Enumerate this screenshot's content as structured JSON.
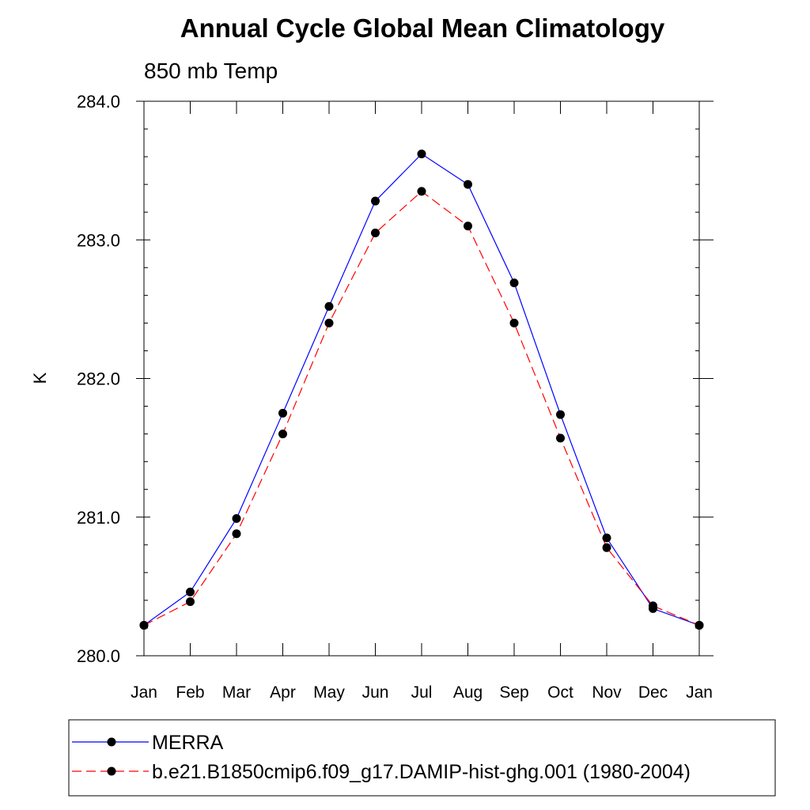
{
  "chart_data": {
    "type": "line",
    "title": "Annual Cycle Global Mean Climatology",
    "subtitle": "850 mb Temp",
    "xlabel": "",
    "ylabel": "K",
    "categories": [
      "Jan",
      "Feb",
      "Mar",
      "Apr",
      "May",
      "Jun",
      "Jul",
      "Aug",
      "Sep",
      "Oct",
      "Nov",
      "Dec",
      "Jan"
    ],
    "ylim": [
      280.0,
      284.0
    ],
    "yticks": [
      "280.0",
      "281.0",
      "282.0",
      "283.0",
      "284.0"
    ],
    "grid": false,
    "legend_position": "bottom",
    "series": [
      {
        "name": "MERRA",
        "color": "#0000ff",
        "style": "solid",
        "marker": "filled-circle",
        "values": [
          280.22,
          280.46,
          280.99,
          281.75,
          282.52,
          283.28,
          283.62,
          283.4,
          282.69,
          281.74,
          280.85,
          280.34,
          280.22
        ]
      },
      {
        "name": "b.e21.B1850cmip6.f09_g17.DAMIP-hist-ghg.001 (1980-2004)",
        "color": "#ff0000",
        "style": "dashed",
        "marker": "filled-circle",
        "values": [
          280.22,
          280.39,
          280.88,
          281.6,
          282.4,
          283.05,
          283.35,
          283.1,
          282.4,
          281.57,
          280.78,
          280.36,
          280.22
        ]
      }
    ]
  }
}
